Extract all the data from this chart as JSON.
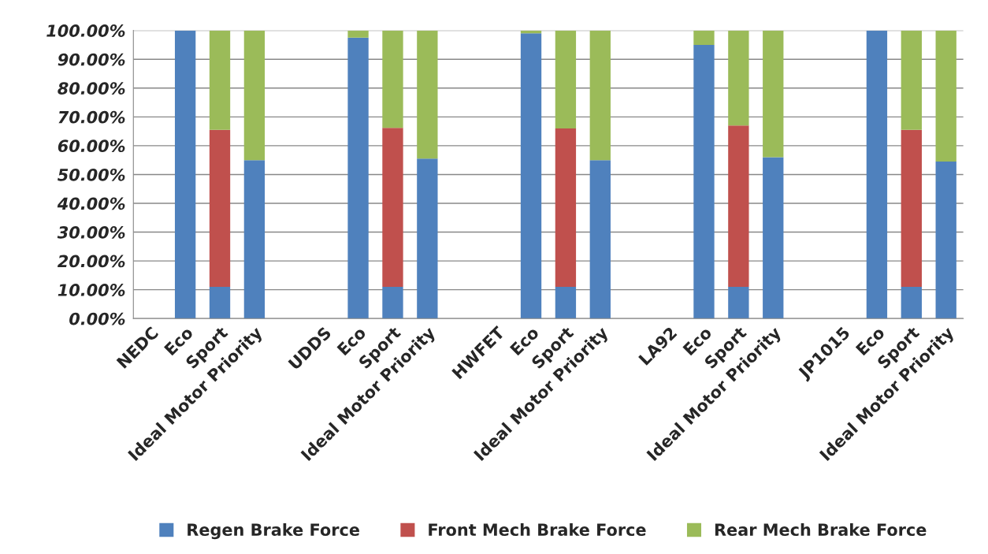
{
  "chart_data": {
    "type": "bar",
    "stacked": true,
    "categories": [
      "NEDC",
      "Eco",
      "Sport",
      "Ideal Motor Priority",
      null,
      "UDDS",
      "Eco",
      "Sport",
      "Ideal Motor Priority",
      null,
      "HWFET",
      "Eco",
      "Sport",
      "Ideal Motor Priority",
      null,
      "LA92",
      "Eco",
      "Sport",
      "Ideal Motor Priority",
      null,
      "JP1015",
      "Eco",
      "Sport",
      "Ideal Motor Priority"
    ],
    "series": [
      {
        "name": "Regen Brake Force",
        "color": "#4f81bd",
        "values": [
          null,
          100,
          11,
          55,
          null,
          null,
          97.5,
          11,
          55.5,
          null,
          null,
          99,
          11,
          55,
          null,
          null,
          95,
          11,
          56,
          null,
          null,
          100,
          11,
          54.5
        ]
      },
      {
        "name": "Front Mech Brake Force",
        "color": "#c0504d",
        "values": [
          null,
          null,
          54.5,
          null,
          null,
          null,
          null,
          55.2,
          null,
          null,
          null,
          null,
          55,
          null,
          null,
          null,
          null,
          56,
          null,
          null,
          null,
          null,
          54.5,
          null
        ]
      },
      {
        "name": "Rear Mech Brake Force",
        "color": "#9bbb59",
        "values": [
          null,
          null,
          34.5,
          45,
          null,
          null,
          2.5,
          33.8,
          44.5,
          null,
          null,
          1,
          34,
          45,
          null,
          null,
          5,
          33,
          44,
          null,
          null,
          null,
          34.5,
          45.5
        ]
      }
    ],
    "ylim": [
      0,
      100
    ],
    "yticks": [
      {
        "value": 0,
        "label": "0.00%"
      },
      {
        "value": 10,
        "label": "10.00%"
      },
      {
        "value": 20,
        "label": "20.00%"
      },
      {
        "value": 30,
        "label": "30.00%"
      },
      {
        "value": 40,
        "label": "40.00%"
      },
      {
        "value": 50,
        "label": "50.00%"
      },
      {
        "value": 60,
        "label": "60.00%"
      },
      {
        "value": 70,
        "label": "70.00%"
      },
      {
        "value": 80,
        "label": "80.00%"
      },
      {
        "value": 90,
        "label": "90.00%"
      },
      {
        "value": 100,
        "label": "100.00%"
      }
    ],
    "grid": "y",
    "legend": "bottom"
  }
}
